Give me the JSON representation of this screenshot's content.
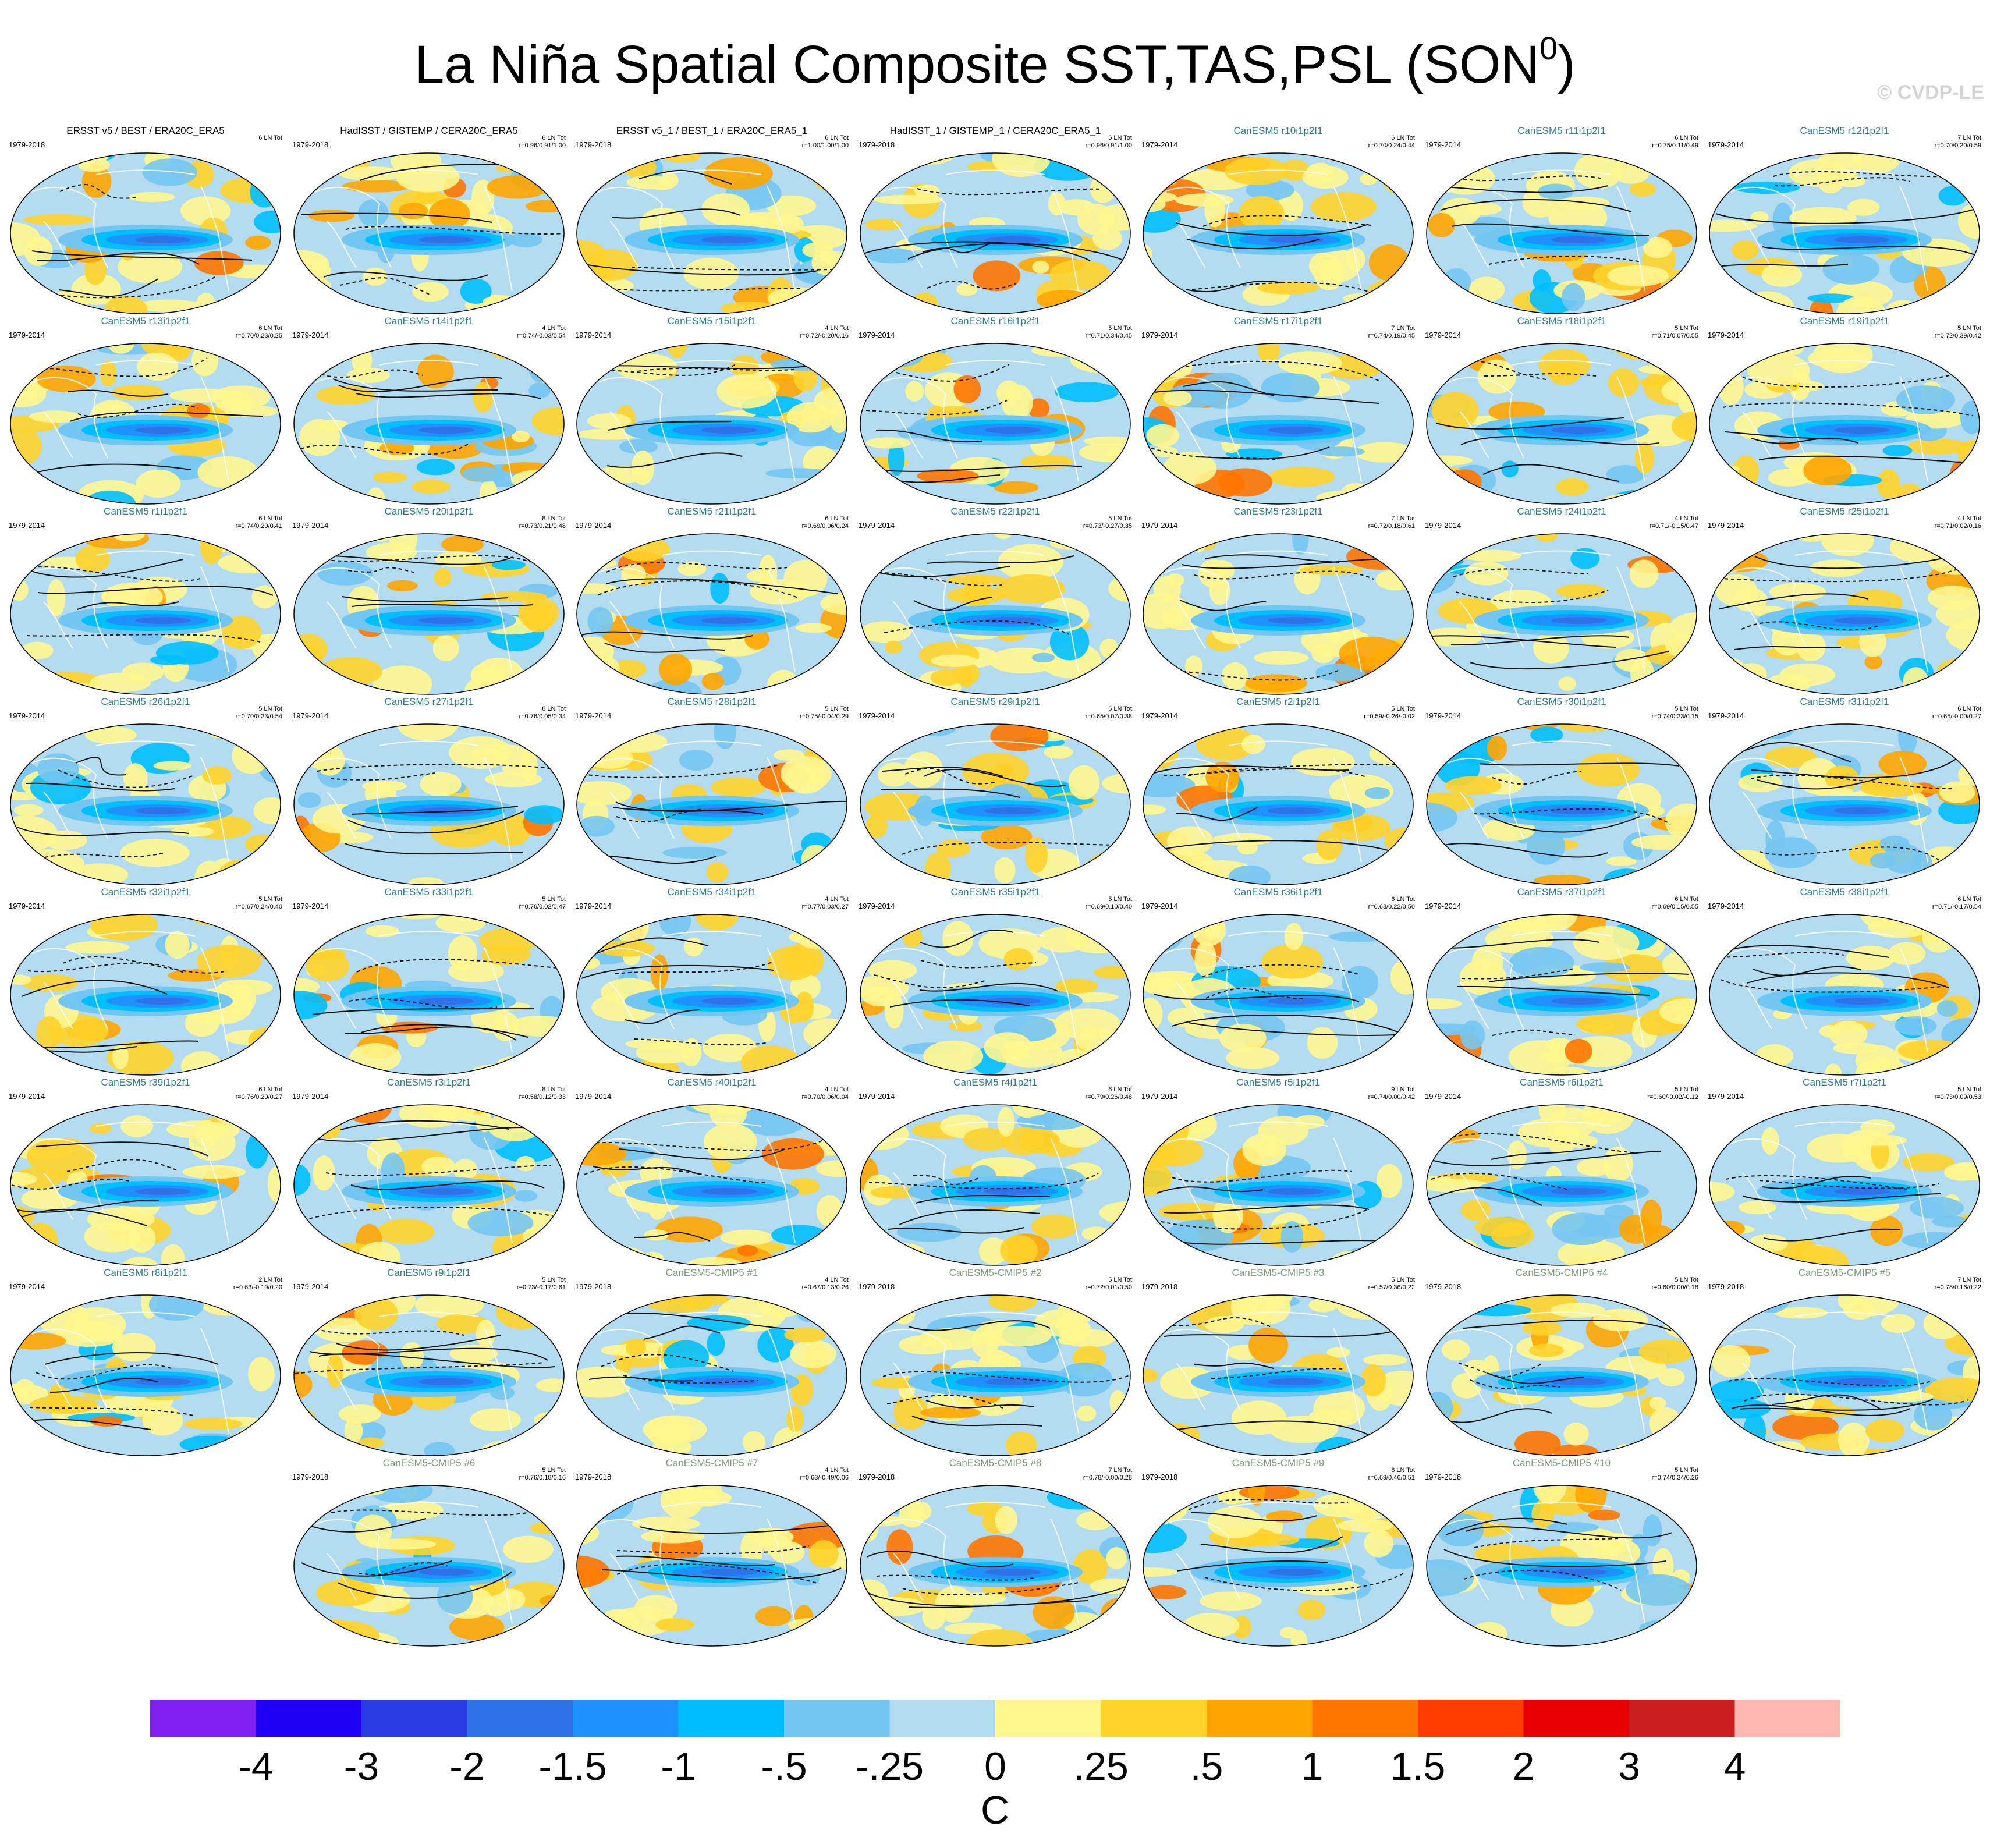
{
  "title": "La Niña Spatial Composite SST,TAS,PSL (SON",
  "title_sup": "0",
  "title_close": ")",
  "watermark": "© CVDP-LE",
  "panels": [
    {
      "title": "ERSST v5 / BEST / ERA20C_ERA5",
      "years": "1979-2018",
      "count": "6 LN Tot",
      "stats": "",
      "kind": "obs"
    },
    {
      "title": "HadISST / GISTEMP / CERA20C_ERA5",
      "years": "1979-2018",
      "count": "6 LN Tot",
      "stats": "r=0.96/0.91/1.00",
      "kind": "obs"
    },
    {
      "title": "ERSST v5_1 / BEST_1 / ERA20C_ERA5_1",
      "years": "1979-2018",
      "count": "6 LN Tot",
      "stats": "r=1.00/1.00/1.00",
      "kind": "obs"
    },
    {
      "title": "HadISST_1 / GISTEMP_1 / CERA20C_ERA5_1",
      "years": "1979-2018",
      "count": "6 LN Tot",
      "stats": "r=0.96/0.91/1.00",
      "kind": "obs"
    },
    {
      "title": "CanESM5 r10i1p2f1",
      "years": "1979-2014",
      "count": "6 LN Tot",
      "stats": "r=0.70/0.24/0.44",
      "kind": "model"
    },
    {
      "title": "CanESM5 r11i1p2f1",
      "years": "1979-2014",
      "count": "6 LN Tot",
      "stats": "r=0.75/0.11/0.49",
      "kind": "model"
    },
    {
      "title": "CanESM5 r12i1p2f1",
      "years": "1979-2014",
      "count": "7 LN Tot",
      "stats": "r=0.70/0.20/0.59",
      "kind": "model"
    },
    {
      "title": "CanESM5 r13i1p2f1",
      "years": "1979-2014",
      "count": "6 LN Tot",
      "stats": "r=0.70/0.23/0.25",
      "kind": "model"
    },
    {
      "title": "CanESM5 r14i1p2f1",
      "years": "1979-2014",
      "count": "4 LN Tot",
      "stats": "r=0.74/-0.03/0.54",
      "kind": "model"
    },
    {
      "title": "CanESM5 r15i1p2f1",
      "years": "1979-2014",
      "count": "4 LN Tot",
      "stats": "r=0.72/-0.20/0.16",
      "kind": "model"
    },
    {
      "title": "CanESM5 r16i1p2f1",
      "years": "1979-2014",
      "count": "5 LN Tot",
      "stats": "r=0.71/0.34/0.45",
      "kind": "model"
    },
    {
      "title": "CanESM5 r17i1p2f1",
      "years": "1979-2014",
      "count": "7 LN Tot",
      "stats": "r=0.74/0.19/0.45",
      "kind": "model"
    },
    {
      "title": "CanESM5 r18i1p2f1",
      "years": "1979-2014",
      "count": "5 LN Tot",
      "stats": "r=0.71/0.07/0.55",
      "kind": "model"
    },
    {
      "title": "CanESM5 r19i1p2f1",
      "years": "1979-2014",
      "count": "5 LN Tot",
      "stats": "r=0.72/0.39/0.42",
      "kind": "model"
    },
    {
      "title": "CanESM5 r1i1p2f1",
      "years": "1979-2014",
      "count": "6 LN Tot",
      "stats": "r=0.74/0.20/0.41",
      "kind": "model"
    },
    {
      "title": "CanESM5 r20i1p2f1",
      "years": "1979-2014",
      "count": "8 LN Tot",
      "stats": "r=0.73/0.21/0.48",
      "kind": "model"
    },
    {
      "title": "CanESM5 r21i1p2f1",
      "years": "1979-2014",
      "count": "6 LN Tot",
      "stats": "r=0.69/0.06/0.24",
      "kind": "model"
    },
    {
      "title": "CanESM5 r22i1p2f1",
      "years": "1979-2014",
      "count": "5 LN Tot",
      "stats": "r=0.73/-0.27/0.35",
      "kind": "model"
    },
    {
      "title": "CanESM5 r23i1p2f1",
      "years": "1979-2014",
      "count": "7 LN Tot",
      "stats": "r=0.72/0.18/0.61",
      "kind": "model"
    },
    {
      "title": "CanESM5 r24i1p2f1",
      "years": "1979-2014",
      "count": "4 LN Tot",
      "stats": "r=0.71/-0.15/0.47",
      "kind": "model"
    },
    {
      "title": "CanESM5 r25i1p2f1",
      "years": "1979-2014",
      "count": "4 LN Tot",
      "stats": "r=0.71/0.02/0.16",
      "kind": "model"
    },
    {
      "title": "CanESM5 r26i1p2f1",
      "years": "1979-2014",
      "count": "5 LN Tot",
      "stats": "r=0.70/0.23/0.54",
      "kind": "model"
    },
    {
      "title": "CanESM5 r27i1p2f1",
      "years": "1979-2014",
      "count": "6 LN Tot",
      "stats": "r=0.76/0.05/0.34",
      "kind": "model"
    },
    {
      "title": "CanESM5 r28i1p2f1",
      "years": "1979-2014",
      "count": "5 LN Tot",
      "stats": "r=0.75/-0.04/0.29",
      "kind": "model"
    },
    {
      "title": "CanESM5 r29i1p2f1",
      "years": "1979-2014",
      "count": "6 LN Tot",
      "stats": "r=0.65/0.07/0.38",
      "kind": "model"
    },
    {
      "title": "CanESM5 r2i1p2f1",
      "years": "1979-2014",
      "count": "5 LN Tot",
      "stats": "r=0.59/-0.26/-0.02",
      "kind": "model"
    },
    {
      "title": "CanESM5 r30i1p2f1",
      "years": "1979-2014",
      "count": "5 LN Tot",
      "stats": "r=0.74/0.23/0.15",
      "kind": "model"
    },
    {
      "title": "CanESM5 r31i1p2f1",
      "years": "1979-2014",
      "count": "6 LN Tot",
      "stats": "r=0.65/-0.00/0.27",
      "kind": "model"
    },
    {
      "title": "CanESM5 r32i1p2f1",
      "years": "1979-2014",
      "count": "5 LN Tot",
      "stats": "r=0.67/0.24/0.40",
      "kind": "model"
    },
    {
      "title": "CanESM5 r33i1p2f1",
      "years": "1979-2014",
      "count": "5 LN Tot",
      "stats": "r=0.76/0.02/0.47",
      "kind": "model"
    },
    {
      "title": "CanESM5 r34i1p2f1",
      "years": "1979-2014",
      "count": "4 LN Tot",
      "stats": "r=0.77/0.03/0.27",
      "kind": "model"
    },
    {
      "title": "CanESM5 r35i1p2f1",
      "years": "1979-2014",
      "count": "5 LN Tot",
      "stats": "r=0.69/0.10/0.40",
      "kind": "model"
    },
    {
      "title": "CanESM5 r36i1p2f1",
      "years": "1979-2014",
      "count": "6 LN Tot",
      "stats": "r=0.63/0.22/0.50",
      "kind": "model"
    },
    {
      "title": "CanESM5 r37i1p2f1",
      "years": "1979-2014",
      "count": "6 LN Tot",
      "stats": "r=0.69/0.15/0.55",
      "kind": "model"
    },
    {
      "title": "CanESM5 r38i1p2f1",
      "years": "1979-2014",
      "count": "6 LN Tot",
      "stats": "r=0.71/-0.17/0.54",
      "kind": "model"
    },
    {
      "title": "CanESM5 r39i1p2f1",
      "years": "1979-2014",
      "count": "6 LN Tot",
      "stats": "r=0.76/0.20/0.27",
      "kind": "model"
    },
    {
      "title": "CanESM5 r3i1p2f1",
      "years": "1979-2014",
      "count": "8 LN Tot",
      "stats": "r=0.58/0.12/0.33",
      "kind": "model"
    },
    {
      "title": "CanESM5 r40i1p2f1",
      "years": "1979-2014",
      "count": "4 LN Tot",
      "stats": "r=0.70/0.06/0.04",
      "kind": "model"
    },
    {
      "title": "CanESM5 r4i1p2f1",
      "years": "1979-2014",
      "count": "6 LN Tot",
      "stats": "r=0.79/0.26/0.48",
      "kind": "model"
    },
    {
      "title": "CanESM5 r5i1p2f1",
      "years": "1979-2014",
      "count": "9 LN Tot",
      "stats": "r=0.74/0.00/0.42",
      "kind": "model"
    },
    {
      "title": "CanESM5 r6i1p2f1",
      "years": "1979-2014",
      "count": "5 LN Tot",
      "stats": "r=0.60/-0.02/-0.12",
      "kind": "model"
    },
    {
      "title": "CanESM5 r7i1p2f1",
      "years": "1979-2014",
      "count": "5 LN Tot",
      "stats": "r=0.73/0.09/0.53",
      "kind": "model"
    },
    {
      "title": "CanESM5 r8i1p2f1",
      "years": "1979-2014",
      "count": "2 LN Tot",
      "stats": "r=0.63/-0.19/0.20",
      "kind": "model"
    },
    {
      "title": "CanESM5 r9i1p2f1",
      "years": "1979-2014",
      "count": "5 LN Tot",
      "stats": "r=0.73/-0.17/0.61",
      "kind": "model"
    },
    {
      "title": "CanESM5-CMIP5 #1",
      "years": "1979-2018",
      "count": "4 LN Tot",
      "stats": "r=0.67/0.13/0.26",
      "kind": "cmip"
    },
    {
      "title": "CanESM5-CMIP5 #2",
      "years": "1979-2018",
      "count": "5 LN Tot",
      "stats": "r=0.72/0.01/0.50",
      "kind": "cmip"
    },
    {
      "title": "CanESM5-CMIP5 #3",
      "years": "1979-2018",
      "count": "5 LN Tot",
      "stats": "r=0.57/0.36/0.22",
      "kind": "cmip"
    },
    {
      "title": "CanESM5-CMIP5 #4",
      "years": "1979-2018",
      "count": "5 LN Tot",
      "stats": "r=0.60/0.00/0.18",
      "kind": "cmip"
    },
    {
      "title": "CanESM5-CMIP5 #5",
      "years": "1979-2018",
      "count": "7 LN Tot",
      "stats": "r=0.78/0.16/0.22",
      "kind": "cmip"
    },
    {
      "title": "CanESM5-CMIP5 #6",
      "years": "1979-2018",
      "count": "5 LN Tot",
      "stats": "r=0.76/0.18/0.16",
      "kind": "cmip"
    },
    {
      "title": "CanESM5-CMIP5 #7",
      "years": "1979-2018",
      "count": "4 LN Tot",
      "stats": "r=0.63/-0.49/0.06",
      "kind": "cmip"
    },
    {
      "title": "CanESM5-CMIP5 #8",
      "years": "1979-2018",
      "count": "7 LN Tot",
      "stats": "r=0.78/-0.00/0.28",
      "kind": "cmip"
    },
    {
      "title": "CanESM5-CMIP5 #9",
      "years": "1979-2018",
      "count": "8 LN Tot",
      "stats": "r=0.69/0.46/0.51",
      "kind": "cmip"
    },
    {
      "title": "CanESM5-CMIP5 #10",
      "years": "1979-2018",
      "count": "5 LN Tot",
      "stats": "r=0.74/0.34/0.26",
      "kind": "cmip"
    }
  ],
  "colorbar": {
    "labels": [
      "-4",
      "-3",
      "-2",
      "-1.5",
      "-1",
      "-.5",
      "-.25",
      "0",
      ".25",
      ".5",
      "1",
      "1.5",
      "2",
      "3",
      "4"
    ],
    "colors": [
      "#7f1ff0",
      "#1f00f5",
      "#2a3ee6",
      "#2f72e8",
      "#1e90ff",
      "#00bfff",
      "#74c6f2",
      "#b4dcf0",
      "#fff68f",
      "#ffd32a",
      "#ffa500",
      "#ff7500",
      "#ff3c00",
      "#e60000",
      "#c81e1e",
      "#ffb6b0"
    ],
    "units": "C"
  },
  "palette": {
    "land_gray": "#a0a0a0",
    "coast_white": "#ffffff",
    "contour": "#111111"
  }
}
